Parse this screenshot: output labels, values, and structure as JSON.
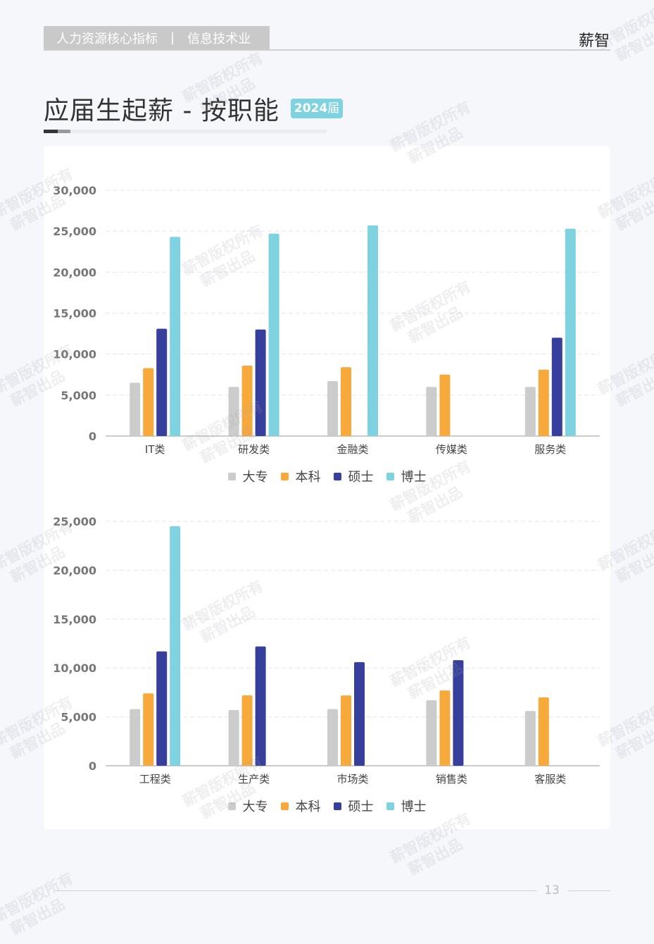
{
  "header": {
    "section": "人力资源核心指标",
    "separator": "|",
    "industry": "信息技术业",
    "brand": "薪智"
  },
  "page": {
    "title": "应届生起薪 - 按职能",
    "year_badge": "2024",
    "year_badge_suffix": "届",
    "page_number": "13"
  },
  "watermark": {
    "line1": "薪智版权所有",
    "line2": "薪智出品"
  },
  "colors": {
    "大专": "#cccccc",
    "本科": "#f7a93c",
    "硕士": "#363f9b",
    "博士": "#7fd3e0"
  },
  "chart_data": [
    {
      "type": "bar",
      "categories": [
        "IT类",
        "研发类",
        "金融类",
        "传媒类",
        "服务类"
      ],
      "series": [
        {
          "name": "大专",
          "values": [
            6500,
            6000,
            6700,
            6000,
            6000
          ]
        },
        {
          "name": "本科",
          "values": [
            8300,
            8600,
            8400,
            7500,
            8100
          ]
        },
        {
          "name": "硕士",
          "values": [
            13100,
            13000,
            null,
            null,
            12000
          ]
        },
        {
          "name": "博士",
          "values": [
            24300,
            24700,
            25700,
            null,
            25300
          ]
        }
      ],
      "yticks": [
        "0",
        "5,000",
        "10,000",
        "15,000",
        "20,000",
        "25,000",
        "30,000"
      ],
      "ylim": [
        0,
        30000
      ],
      "legend": "bottom",
      "grid": true
    },
    {
      "type": "bar",
      "categories": [
        "工程类",
        "生产类",
        "市场类",
        "销售类",
        "客服类"
      ],
      "series": [
        {
          "name": "大专",
          "values": [
            5800,
            5700,
            5800,
            6700,
            5600
          ]
        },
        {
          "name": "本科",
          "values": [
            7400,
            7200,
            7200,
            7700,
            7000
          ]
        },
        {
          "name": "硕士",
          "values": [
            11700,
            12200,
            10600,
            10800,
            null
          ]
        },
        {
          "name": "博士",
          "values": [
            24500,
            null,
            null,
            null,
            null
          ]
        }
      ],
      "yticks": [
        "0",
        "5,000",
        "10,000",
        "15,000",
        "20,000",
        "25,000"
      ],
      "ylim": [
        0,
        25000
      ],
      "legend": "bottom",
      "grid": true
    }
  ]
}
